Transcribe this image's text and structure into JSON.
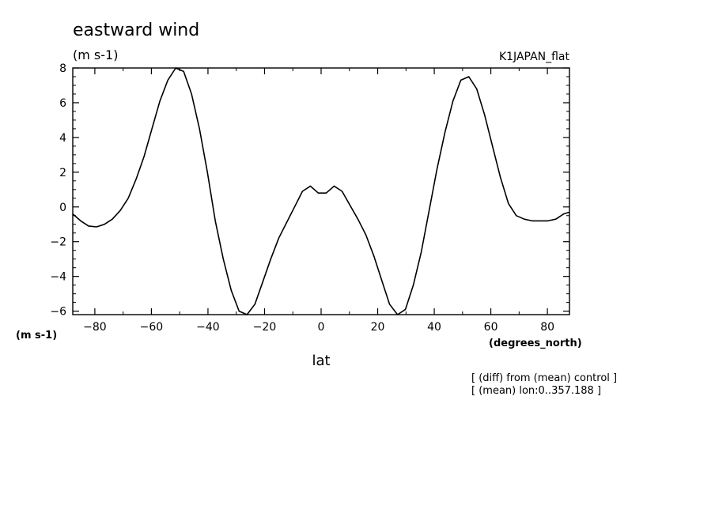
{
  "chart_data": {
    "type": "line",
    "title": "eastward wind",
    "subtitle": "(m s-1)",
    "run_label": "K1JAPAN_flat",
    "xlabel": "lat",
    "xunits": "(degrees_north)",
    "yunits": "(m s-1)",
    "xlim": [
      -87.8,
      87.8
    ],
    "ylim": [
      -6.2,
      8
    ],
    "xticks": [
      -80,
      -60,
      -40,
      -20,
      0,
      20,
      40,
      60,
      80
    ],
    "yticks": [
      -6,
      -4,
      -2,
      0,
      2,
      4,
      6,
      8
    ],
    "grid": false,
    "annotations": [
      "[ (diff) from (mean) control ]",
      "[ (mean) lon:0..357.188 ]"
    ],
    "series": [
      {
        "x": [
          -87.8,
          -85,
          -82.2,
          -79.4,
          -76.6,
          -73.8,
          -71,
          -68.2,
          -65.4,
          -62.6,
          -59.8,
          -57,
          -54.2,
          -51.4,
          -48.6,
          -45.8,
          -43,
          -40.2,
          -37.4,
          -34.6,
          -31.8,
          -29,
          -26.2,
          -23.4,
          -20.6,
          -17.8,
          -15,
          -12.2,
          -9.4,
          -6.6,
          -3.8,
          -1,
          1.8,
          4.6,
          7.4,
          10.2,
          13,
          15.8,
          18.6,
          21.4,
          24.2,
          27,
          29.8,
          32.6,
          35.4,
          38.2,
          41,
          43.8,
          46.6,
          49.4,
          52.2,
          55,
          57.8,
          60.6,
          63.4,
          66.2,
          69,
          71.8,
          74.6,
          77.4,
          80.2,
          83,
          85.8,
          87.8
        ],
        "y": [
          -0.4,
          -0.8,
          -1.1,
          -1.15,
          -1.0,
          -0.7,
          -0.2,
          0.5,
          1.6,
          2.9,
          4.5,
          6.1,
          7.3,
          8.0,
          7.8,
          6.5,
          4.5,
          2.0,
          -0.8,
          -3.0,
          -4.8,
          -6.0,
          -6.2,
          -5.6,
          -4.3,
          -3.0,
          -1.8,
          -0.9,
          0.0,
          0.9,
          1.2,
          0.8,
          0.8,
          1.2,
          0.9,
          0.1,
          -0.7,
          -1.6,
          -2.8,
          -4.2,
          -5.6,
          -6.2,
          -5.9,
          -4.5,
          -2.6,
          -0.2,
          2.2,
          4.3,
          6.1,
          7.3,
          7.5,
          6.8,
          5.3,
          3.5,
          1.7,
          0.2,
          -0.5,
          -0.7,
          -0.8,
          -0.8,
          -0.8,
          -0.7,
          -0.4,
          -0.3
        ]
      }
    ]
  }
}
